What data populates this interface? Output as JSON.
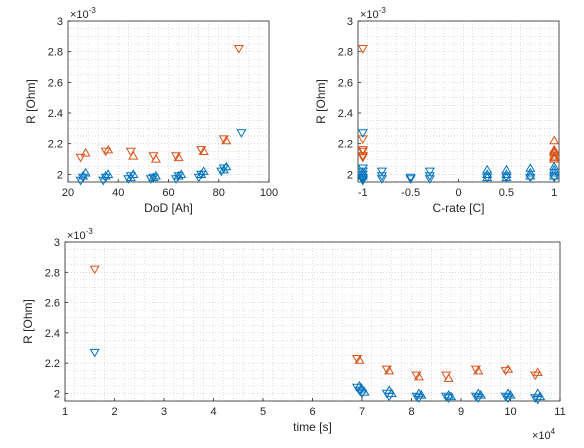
{
  "colors": {
    "orange": "#d95319",
    "blue": "#0072bd",
    "axis": "#262626",
    "grid": "#c8c8c8"
  },
  "chart_data": [
    {
      "type": "scatter",
      "xlabel": "DoD [Ah]",
      "ylabel": "R [Ohm]",
      "exponent_label": "×10",
      "exponent_power": "-3",
      "xlim": [
        20,
        100
      ],
      "ylim": [
        1.95,
        3.0
      ],
      "x_ticks": [
        "20",
        "40",
        "60",
        "80",
        "100"
      ],
      "y_ticks": [
        "2",
        "2.2",
        "2.4",
        "2.6",
        "2.8",
        "3"
      ],
      "grid": "minor-dotted",
      "series": [
        {
          "marker": "triangle-down",
          "color": "#d95319",
          "points": [
            [
              25,
              2.11
            ],
            [
              35,
              2.15
            ],
            [
              45,
              2.15
            ],
            [
              54,
              2.12
            ],
            [
              63,
              2.12
            ],
            [
              73,
              2.16
            ],
            [
              82,
              2.23
            ],
            [
              88,
              2.82
            ]
          ]
        },
        {
          "marker": "triangle-up",
          "color": "#d95319",
          "points": [
            [
              27,
              2.14
            ],
            [
              36,
              2.16
            ],
            [
              46,
              2.12
            ],
            [
              55,
              2.1
            ],
            [
              64,
              2.11
            ],
            [
              74,
              2.15
            ],
            [
              83,
              2.22
            ]
          ]
        },
        {
          "marker": "triangle-down",
          "color": "#0072bd",
          "points": [
            [
              25,
              1.96
            ],
            [
              26,
              1.98
            ],
            [
              34,
              1.96
            ],
            [
              35,
              1.98
            ],
            [
              44,
              1.97
            ],
            [
              45,
              1.99
            ],
            [
              53,
              1.97
            ],
            [
              54,
              1.98
            ],
            [
              63,
              1.97
            ],
            [
              64,
              1.99
            ],
            [
              72,
              1.98
            ],
            [
              73,
              2.0
            ],
            [
              81,
              2.02
            ],
            [
              82,
              2.04
            ],
            [
              89,
              2.27
            ]
          ]
        },
        {
          "marker": "triangle-up",
          "color": "#0072bd",
          "points": [
            [
              26,
              1.99
            ],
            [
              27,
              2.01
            ],
            [
              35,
              1.99
            ],
            [
              36,
              2.0
            ],
            [
              45,
              1.98
            ],
            [
              46,
              2.0
            ],
            [
              54,
              1.98
            ],
            [
              55,
              1.99
            ],
            [
              64,
              1.99
            ],
            [
              65,
              2.0
            ],
            [
              73,
              2.0
            ],
            [
              74,
              2.02
            ],
            [
              82,
              2.03
            ],
            [
              83,
              2.05
            ]
          ]
        }
      ]
    },
    {
      "type": "scatter",
      "xlabel": "C-rate [C]",
      "ylabel": "R [Ohm]",
      "exponent_label": "×10",
      "exponent_power": "-3",
      "xlim": [
        -1.05,
        1.05
      ],
      "ylim": [
        1.95,
        3.0
      ],
      "x_ticks": [
        "-1",
        "-0.5",
        "0",
        "0.5",
        "1"
      ],
      "y_ticks": [
        "2",
        "2.2",
        "2.4",
        "2.6",
        "2.8",
        "3"
      ],
      "grid": "minor-dotted",
      "series": [
        {
          "marker": "triangle-down",
          "color": "#d95319",
          "points": [
            [
              -1,
              2.82
            ],
            [
              -1,
              2.23
            ],
            [
              -1,
              2.16
            ],
            [
              -1,
              2.15
            ],
            [
              -1,
              2.12
            ],
            [
              -1,
              2.12
            ],
            [
              -1,
              2.11
            ]
          ]
        },
        {
          "marker": "triangle-up",
          "color": "#d95319",
          "points": [
            [
              1,
              2.22
            ],
            [
              1,
              2.16
            ],
            [
              1,
              2.15
            ],
            [
              1,
              2.14
            ],
            [
              1,
              2.12
            ],
            [
              1,
              2.11
            ],
            [
              1,
              2.1
            ]
          ]
        },
        {
          "marker": "triangle-down",
          "color": "#0072bd",
          "points": [
            [
              -1,
              2.27
            ],
            [
              -1,
              2.04
            ],
            [
              -1,
              2.02
            ],
            [
              -1,
              2.0
            ],
            [
              -1,
              1.98
            ],
            [
              -1,
              1.97
            ],
            [
              -1,
              1.96
            ],
            [
              -0.8,
              2.02
            ],
            [
              -0.8,
              1.99
            ],
            [
              -0.8,
              1.97
            ],
            [
              -0.5,
              1.98
            ],
            [
              -0.5,
              1.97
            ],
            [
              -0.3,
              2.02
            ],
            [
              -0.3,
              1.99
            ],
            [
              -0.3,
              1.97
            ],
            [
              0.3,
              1.98
            ],
            [
              0.5,
              1.98
            ],
            [
              0.75,
              1.98
            ],
            [
              1,
              1.98
            ]
          ]
        },
        {
          "marker": "triangle-up",
          "color": "#0072bd",
          "points": [
            [
              0.3,
              2.03
            ],
            [
              0.3,
              2.0
            ],
            [
              0.3,
              1.98
            ],
            [
              0.5,
              2.03
            ],
            [
              0.5,
              2.0
            ],
            [
              0.5,
              1.98
            ],
            [
              0.75,
              2.04
            ],
            [
              0.75,
              2.01
            ],
            [
              0.75,
              1.99
            ],
            [
              1,
              2.05
            ],
            [
              1,
              2.03
            ],
            [
              1,
              2.01
            ],
            [
              1,
              1.99
            ],
            [
              -1,
              1.99
            ],
            [
              -1,
              2.01
            ]
          ]
        }
      ]
    },
    {
      "type": "scatter",
      "xlabel": "time [s]",
      "ylabel": "R [Ohm]",
      "exponent_label": "×10",
      "exponent_power": "-3",
      "x_exponent_label": "×10",
      "x_exponent_power": "4",
      "xlim": [
        1,
        11
      ],
      "ylim": [
        1.95,
        3.0
      ],
      "x_ticks": [
        "1",
        "2",
        "3",
        "4",
        "5",
        "6",
        "7",
        "8",
        "9",
        "10",
        "11"
      ],
      "y_ticks": [
        "2",
        "2.2",
        "2.4",
        "2.6",
        "2.8",
        "3"
      ],
      "grid": "minor-dotted",
      "series": [
        {
          "marker": "triangle-down",
          "color": "#d95319",
          "points": [
            [
              1.6,
              2.82
            ],
            [
              6.9,
              2.23
            ],
            [
              7.5,
              2.16
            ],
            [
              8.1,
              2.12
            ],
            [
              8.7,
              2.12
            ],
            [
              9.3,
              2.16
            ],
            [
              9.9,
              2.15
            ],
            [
              10.5,
              2.12
            ]
          ]
        },
        {
          "marker": "triangle-up",
          "color": "#d95319",
          "points": [
            [
              6.95,
              2.22
            ],
            [
              7.55,
              2.15
            ],
            [
              8.15,
              2.11
            ],
            [
              8.75,
              2.1
            ],
            [
              9.35,
              2.15
            ],
            [
              9.95,
              2.16
            ],
            [
              10.55,
              2.14
            ]
          ]
        },
        {
          "marker": "triangle-down",
          "color": "#0072bd",
          "points": [
            [
              1.6,
              2.27
            ],
            [
              6.9,
              2.04
            ],
            [
              6.95,
              2.02
            ],
            [
              7.0,
              2.0
            ],
            [
              7.5,
              2.0
            ],
            [
              7.55,
              1.98
            ],
            [
              8.1,
              1.98
            ],
            [
              8.15,
              1.97
            ],
            [
              8.7,
              1.98
            ],
            [
              8.75,
              1.97
            ],
            [
              9.3,
              1.98
            ],
            [
              9.35,
              1.97
            ],
            [
              9.9,
              1.98
            ],
            [
              9.95,
              1.97
            ],
            [
              10.5,
              1.97
            ],
            [
              10.55,
              1.96
            ]
          ]
        },
        {
          "marker": "triangle-up",
          "color": "#0072bd",
          "points": [
            [
              6.95,
              2.05
            ],
            [
              7.0,
              2.03
            ],
            [
              7.05,
              2.01
            ],
            [
              7.55,
              2.02
            ],
            [
              7.6,
              2.0
            ],
            [
              8.15,
              2.0
            ],
            [
              8.2,
              1.99
            ],
            [
              8.75,
              1.99
            ],
            [
              8.8,
              1.98
            ],
            [
              9.35,
              2.0
            ],
            [
              9.4,
              1.99
            ],
            [
              9.95,
              2.0
            ],
            [
              10.0,
              1.99
            ],
            [
              10.55,
              2.0
            ],
            [
              10.6,
              1.98
            ]
          ]
        }
      ]
    }
  ]
}
